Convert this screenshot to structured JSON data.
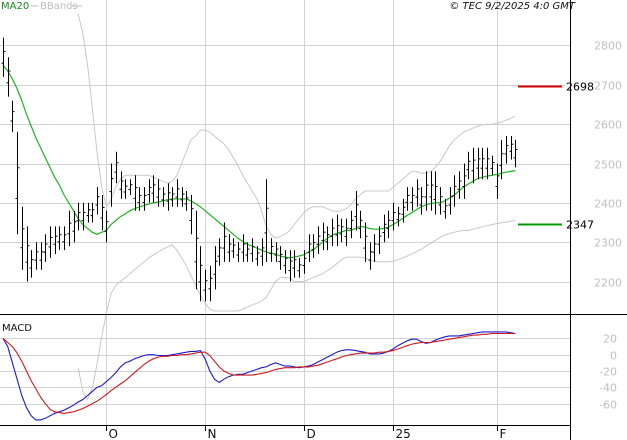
{
  "header": {
    "legend_ma": "MA20",
    "legend_bb": "BBands",
    "source": "© TEC 9/2/2025 4:0 GMT",
    "macd_label": "MACD"
  },
  "colors": {
    "candles": "#000000",
    "ma20": "#1fb31f",
    "bbands": "#c8c8c8",
    "resistance": "#cc0000",
    "support": "#009900",
    "macd_line": "#1a1acc",
    "signal_line": "#cc1a1a"
  },
  "chart_data": [
    {
      "type": "ohlc",
      "panel": "price",
      "ylim": [
        2120,
        2880
      ],
      "yticks": [
        2200,
        2300,
        2400,
        2500,
        2600,
        2700,
        2800
      ],
      "grid": true,
      "levels": [
        {
          "name": "resistance",
          "value": 2698,
          "label": "2698"
        },
        {
          "name": "support",
          "value": 2347,
          "label": "2347"
        }
      ],
      "xlabels": [
        {
          "label": "O",
          "index": 22
        },
        {
          "label": "N",
          "index": 43
        },
        {
          "label": "D",
          "index": 64
        },
        {
          "label": "25",
          "index": 83
        },
        {
          "label": "F",
          "index": 105
        }
      ],
      "high": [
        2820,
        2770,
        2660,
        2580,
        2390,
        2340,
        2280,
        2300,
        2300,
        2320,
        2340,
        2340,
        2340,
        2340,
        2380,
        2380,
        2400,
        2400,
        2400,
        2400,
        2440,
        2420,
        2380,
        2500,
        2530,
        2480,
        2460,
        2460,
        2470,
        2440,
        2440,
        2460,
        2470,
        2460,
        2440,
        2450,
        2440,
        2460,
        2440,
        2430,
        2420,
        2380,
        2290,
        2230,
        2240,
        2290,
        2310,
        2350,
        2320,
        2310,
        2300,
        2320,
        2300,
        2310,
        2290,
        2310,
        2460,
        2310,
        2300,
        2290,
        2280,
        2280,
        2280,
        2260,
        2280,
        2320,
        2320,
        2340,
        2350,
        2340,
        2360,
        2370,
        2360,
        2360,
        2380,
        2430,
        2380,
        2350,
        2300,
        2320,
        2340,
        2370,
        2380,
        2400,
        2390,
        2410,
        2440,
        2440,
        2460,
        2440,
        2480,
        2480,
        2480,
        2440,
        2410,
        2440,
        2470,
        2480,
        2500,
        2530,
        2540,
        2540,
        2540,
        2540,
        2520,
        2500,
        2560,
        2570,
        2570,
        2560
      ],
      "low": [
        2720,
        2670,
        2580,
        2320,
        2230,
        2200,
        2210,
        2230,
        2230,
        2250,
        2260,
        2270,
        2280,
        2280,
        2290,
        2300,
        2330,
        2330,
        2350,
        2350,
        2370,
        2330,
        2300,
        2390,
        2450,
        2410,
        2410,
        2420,
        2380,
        2380,
        2380,
        2400,
        2400,
        2390,
        2390,
        2380,
        2390,
        2390,
        2390,
        2380,
        2320,
        2180,
        2150,
        2150,
        2150,
        2180,
        2240,
        2250,
        2250,
        2260,
        2250,
        2250,
        2250,
        2250,
        2240,
        2240,
        2250,
        2250,
        2250,
        2230,
        2220,
        2200,
        2210,
        2210,
        2220,
        2250,
        2260,
        2270,
        2280,
        2280,
        2290,
        2290,
        2300,
        2290,
        2310,
        2330,
        2310,
        2250,
        2230,
        2250,
        2270,
        2300,
        2310,
        2330,
        2340,
        2350,
        2380,
        2380,
        2390,
        2370,
        2380,
        2380,
        2370,
        2370,
        2360,
        2370,
        2390,
        2410,
        2410,
        2460,
        2450,
        2460,
        2460,
        2460,
        2470,
        2410,
        2460,
        2500,
        2510,
        2490
      ]
    },
    {
      "type": "line",
      "panel": "price",
      "series": [
        {
          "name": "MA20",
          "values": [
            2750,
            2735,
            2715,
            2690,
            2660,
            2625,
            2595,
            2565,
            2540,
            2515,
            2490,
            2465,
            2445,
            2420,
            2400,
            2380,
            2360,
            2345,
            2335,
            2325,
            2320,
            2325,
            2330,
            2345,
            2355,
            2365,
            2372,
            2380,
            2385,
            2390,
            2393,
            2397,
            2400,
            2402,
            2405,
            2408,
            2410,
            2410,
            2410,
            2410,
            2405,
            2398,
            2390,
            2380,
            2370,
            2360,
            2350,
            2340,
            2330,
            2320,
            2310,
            2302,
            2295,
            2290,
            2285,
            2280,
            2275,
            2272,
            2270,
            2265,
            2262,
            2260,
            2262,
            2265,
            2268,
            2275,
            2280,
            2290,
            2300,
            2310,
            2318,
            2322,
            2326,
            2330,
            2330,
            2335,
            2340,
            2338,
            2335,
            2333,
            2333,
            2335,
            2338,
            2345,
            2352,
            2360,
            2368,
            2375,
            2383,
            2390,
            2395,
            2398,
            2400,
            2400,
            2405,
            2412,
            2420,
            2430,
            2440,
            2448,
            2455,
            2462,
            2465,
            2468,
            2470,
            2472,
            2475,
            2478,
            2480,
            2482
          ]
        },
        {
          "name": "BBands",
          "values": [
            null,
            null,
            null,
            null,
            null,
            null,
            null,
            null,
            null,
            null,
            null,
            null,
            null,
            null,
            null,
            null,
            2880,
            2830,
            2750,
            2640,
            2530,
            2440,
            2390,
            2410,
            2440,
            2460,
            2470,
            2470,
            2470,
            2470,
            2470,
            2470,
            2465,
            2460,
            2455,
            2450,
            2455,
            2470,
            2500,
            2530,
            2560,
            2570,
            2585,
            2585,
            2580,
            2570,
            2560,
            2550,
            2535,
            2515,
            2495,
            2470,
            2450,
            2430,
            2410,
            2380,
            2340,
            2320,
            2310,
            2315,
            2320,
            2330,
            2345,
            2360,
            2375,
            2385,
            2390,
            2390,
            2390,
            2385,
            2380,
            2378,
            2380,
            2385,
            2395,
            2410,
            2420,
            2430,
            2430,
            2430,
            2430,
            2430,
            2430,
            2440,
            2450,
            2460,
            2470,
            2480,
            2480,
            2475,
            2475,
            2480,
            2490,
            2505,
            2525,
            2545,
            2560,
            2570,
            2580,
            2585,
            2590,
            2595,
            2598,
            2600,
            2600,
            2602,
            2605,
            2610,
            2615,
            2620
          ]
        },
        {
          "name": "BBands",
          "values": [
            null,
            null,
            null,
            null,
            null,
            null,
            null,
            null,
            null,
            null,
            null,
            null,
            null,
            null,
            null,
            null,
            1980,
            1920,
            1900,
            1930,
            1990,
            2060,
            2120,
            2170,
            2190,
            2200,
            2210,
            2220,
            2230,
            2240,
            2250,
            2260,
            2268,
            2275,
            2282,
            2288,
            2293,
            2280,
            2260,
            2240,
            2215,
            2190,
            2165,
            2145,
            2130,
            2125,
            2125,
            2125,
            2125,
            2125,
            2125,
            2130,
            2135,
            2140,
            2145,
            2150,
            2160,
            2180,
            2200,
            2210,
            2210,
            2210,
            2200,
            2200,
            2200,
            2205,
            2210,
            2215,
            2220,
            2228,
            2235,
            2245,
            2255,
            2262,
            2262,
            2262,
            2262,
            2260,
            2255,
            2252,
            2250,
            2250,
            2250,
            2252,
            2255,
            2260,
            2265,
            2270,
            2276,
            2282,
            2290,
            2297,
            2305,
            2312,
            2318,
            2322,
            2325,
            2328,
            2330,
            2330,
            2333,
            2336,
            2339,
            2342,
            2345,
            2347,
            2349,
            2351,
            2353,
            2355
          ]
        }
      ]
    },
    {
      "type": "line",
      "panel": "macd",
      "ylim": [
        -85,
        45
      ],
      "yticks": [
        20,
        0,
        -20,
        -40,
        -60
      ],
      "grid": true,
      "series": [
        {
          "name": "MACD",
          "values": [
            20,
            10,
            -10,
            -30,
            -50,
            -65,
            -75,
            -80,
            -80,
            -78,
            -75,
            -72,
            -70,
            -68,
            -65,
            -62,
            -58,
            -55,
            -50,
            -45,
            -40,
            -38,
            -33,
            -28,
            -22,
            -15,
            -10,
            -8,
            -5,
            -3,
            -1,
            0,
            0,
            -1,
            -1,
            -1,
            0,
            1,
            2,
            3,
            4,
            4,
            5,
            -5,
            -20,
            -30,
            -34,
            -30,
            -27,
            -25,
            -24,
            -24,
            -22,
            -20,
            -18,
            -16,
            -15,
            -12,
            -10,
            -12,
            -14,
            -14,
            -15,
            -16,
            -15,
            -14,
            -12,
            -9,
            -6,
            -3,
            0,
            3,
            5,
            6,
            6,
            5,
            4,
            3,
            1,
            1,
            1,
            2,
            4,
            7,
            11,
            14,
            17,
            19,
            19,
            16,
            14,
            15,
            18,
            20,
            22,
            23,
            23,
            23,
            24,
            25,
            26,
            27,
            28,
            28,
            28,
            28,
            28,
            28,
            27,
            26
          ]
        },
        {
          "name": "Signal",
          "values": [
            20,
            15,
            10,
            2,
            -8,
            -20,
            -32,
            -42,
            -52,
            -60,
            -67,
            -70,
            -71,
            -72,
            -71,
            -70,
            -68,
            -66,
            -63,
            -60,
            -57,
            -53,
            -49,
            -44,
            -40,
            -36,
            -32,
            -27,
            -22,
            -17,
            -12,
            -8,
            -5,
            -3,
            -2,
            -2,
            -1,
            -1,
            0,
            0,
            1,
            2,
            3,
            3,
            -1,
            -8,
            -15,
            -20,
            -23,
            -25,
            -25,
            -25,
            -25,
            -25,
            -24,
            -23,
            -22,
            -20,
            -18,
            -17,
            -16,
            -16,
            -16,
            -15,
            -15,
            -15,
            -14,
            -13,
            -11,
            -9,
            -7,
            -5,
            -3,
            -1,
            0,
            1,
            2,
            2,
            2,
            2,
            3,
            3,
            4,
            5,
            7,
            9,
            11,
            13,
            14,
            15,
            15,
            15,
            16,
            17,
            18,
            19,
            20,
            21,
            22,
            23,
            24,
            24,
            25,
            25,
            26,
            26,
            26,
            26,
            26,
            26
          ]
        }
      ]
    }
  ]
}
